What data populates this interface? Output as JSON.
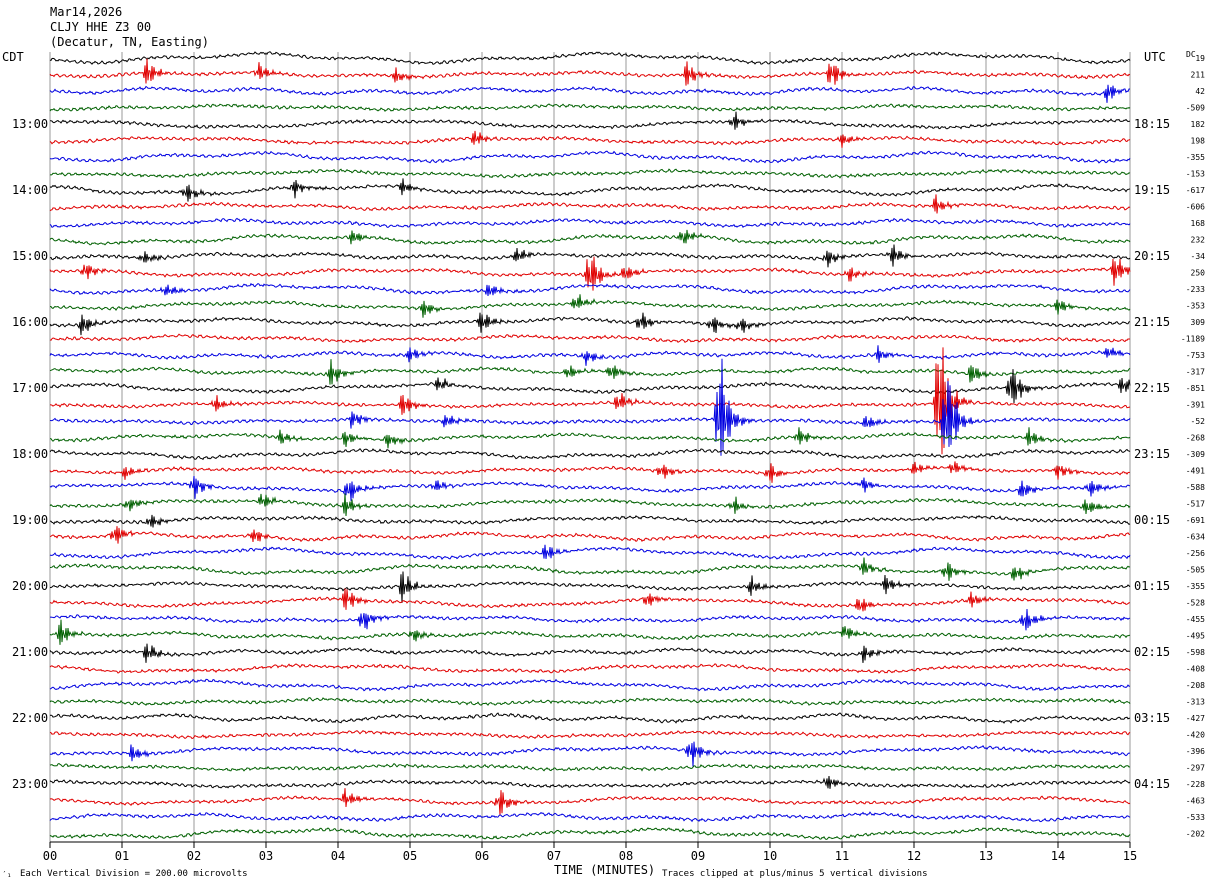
{
  "header": {
    "date": "Mar14,2026",
    "station": "CLJY HHE Z3 00",
    "location": "(Decatur, TN, Easting)"
  },
  "labels": {
    "left_tz": "CDT",
    "right_tz": "UTC",
    "dc_label": "DC",
    "x_axis_title": "TIME (MINUTES)",
    "scale_note": "Each Vertical Division =  200.00 microvolts",
    "clip_note": "Traces clipped at plus/minus 5 vertical divisions",
    "corner_mark": "′₁"
  },
  "chart_data": {
    "type": "line",
    "title": "",
    "xlabel": "TIME (MINUTES)",
    "xlim": [
      0,
      15
    ],
    "x_ticks": [
      "00",
      "01",
      "02",
      "03",
      "04",
      "05",
      "06",
      "07",
      "08",
      "09",
      "10",
      "11",
      "12",
      "13",
      "14",
      "15"
    ],
    "rows_per_hour": 4,
    "row_count": 48,
    "trace_colors": [
      "#000000",
      "#e00000",
      "#0000e0",
      "#006000"
    ],
    "left_hour_labels": [
      "13:00",
      "14:00",
      "15:00",
      "16:00",
      "17:00",
      "18:00",
      "19:00",
      "20:00",
      "21:00",
      "22:00",
      "23:00"
    ],
    "right_hour_labels": [
      "18:15",
      "19:15",
      "20:15",
      "21:15",
      "22:15",
      "23:15",
      "00:15",
      "01:15",
      "02:15",
      "03:15",
      "04:15"
    ],
    "hour_label_first_row": 4,
    "dc_offsets": [
      "19",
      "211",
      "42",
      "-509",
      "182",
      "198",
      "-355",
      "-153",
      "-617",
      "-606",
      "168",
      "232",
      "-34",
      "250",
      "-233",
      "-353",
      "309",
      "-1189",
      "-753",
      "-317",
      "-851",
      "-391",
      "-52",
      "-268",
      "-309",
      "-491",
      "-588",
      "-517",
      "-691",
      "-634",
      "-256",
      "-505",
      "-355",
      "-528",
      "-455",
      "-495",
      "-598",
      "-408",
      "-208",
      "-313",
      "-427",
      "-420",
      "-396",
      "-297",
      "-228",
      "-463",
      "-533",
      "-202"
    ],
    "events": [
      {
        "row": 1,
        "minute": 1.35,
        "amp": 0.8
      },
      {
        "row": 1,
        "minute": 2.9,
        "amp": 0.5
      },
      {
        "row": 1,
        "minute": 4.8,
        "amp": 0.5
      },
      {
        "row": 1,
        "minute": 8.85,
        "amp": 0.7
      },
      {
        "row": 1,
        "minute": 10.85,
        "amp": 0.9
      },
      {
        "row": 2,
        "minute": 14.7,
        "amp": 0.6
      },
      {
        "row": 4,
        "minute": 9.5,
        "amp": 0.6
      },
      {
        "row": 5,
        "minute": 5.9,
        "amp": 0.5
      },
      {
        "row": 5,
        "minute": 11.0,
        "amp": 0.5
      },
      {
        "row": 8,
        "minute": 1.9,
        "amp": 0.6
      },
      {
        "row": 8,
        "minute": 3.4,
        "amp": 0.5
      },
      {
        "row": 8,
        "minute": 4.9,
        "amp": 0.5
      },
      {
        "row": 9,
        "minute": 12.3,
        "amp": 0.6
      },
      {
        "row": 11,
        "minute": 4.2,
        "amp": 0.5
      },
      {
        "row": 11,
        "minute": 8.8,
        "amp": 0.6
      },
      {
        "row": 12,
        "minute": 1.3,
        "amp": 0.5
      },
      {
        "row": 12,
        "minute": 6.5,
        "amp": 0.5
      },
      {
        "row": 12,
        "minute": 10.8,
        "amp": 0.6
      },
      {
        "row": 12,
        "minute": 11.7,
        "amp": 0.7
      },
      {
        "row": 13,
        "minute": 0.5,
        "amp": 0.6
      },
      {
        "row": 13,
        "minute": 7.5,
        "amp": 1.6
      },
      {
        "row": 13,
        "minute": 8.0,
        "amp": 0.6
      },
      {
        "row": 13,
        "minute": 11.1,
        "amp": 0.5
      },
      {
        "row": 13,
        "minute": 14.8,
        "amp": 1.0
      },
      {
        "row": 14,
        "minute": 1.6,
        "amp": 0.5
      },
      {
        "row": 14,
        "minute": 6.1,
        "amp": 0.5
      },
      {
        "row": 15,
        "minute": 5.2,
        "amp": 0.5
      },
      {
        "row": 15,
        "minute": 7.3,
        "amp": 0.6
      },
      {
        "row": 15,
        "minute": 14.0,
        "amp": 0.5
      },
      {
        "row": 16,
        "minute": 0.45,
        "amp": 0.7
      },
      {
        "row": 16,
        "minute": 6.0,
        "amp": 0.8
      },
      {
        "row": 16,
        "minute": 8.2,
        "amp": 0.6
      },
      {
        "row": 16,
        "minute": 9.2,
        "amp": 0.6
      },
      {
        "row": 16,
        "minute": 9.6,
        "amp": 0.5
      },
      {
        "row": 18,
        "minute": 5.0,
        "amp": 0.5
      },
      {
        "row": 18,
        "minute": 7.45,
        "amp": 0.5
      },
      {
        "row": 18,
        "minute": 11.5,
        "amp": 0.5
      },
      {
        "row": 18,
        "minute": 14.7,
        "amp": 0.5
      },
      {
        "row": 19,
        "minute": 3.9,
        "amp": 0.8
      },
      {
        "row": 19,
        "minute": 7.2,
        "amp": 0.5
      },
      {
        "row": 19,
        "minute": 7.8,
        "amp": 0.6
      },
      {
        "row": 19,
        "minute": 12.8,
        "amp": 0.7
      },
      {
        "row": 20,
        "minute": 5.4,
        "amp": 0.5
      },
      {
        "row": 20,
        "minute": 13.35,
        "amp": 1.6
      },
      {
        "row": 20,
        "minute": 14.9,
        "amp": 0.6
      },
      {
        "row": 21,
        "minute": 2.3,
        "amp": 0.5
      },
      {
        "row": 21,
        "minute": 4.9,
        "amp": 0.8
      },
      {
        "row": 21,
        "minute": 7.9,
        "amp": 0.7
      },
      {
        "row": 21,
        "minute": 12.35,
        "amp": 5.0
      },
      {
        "row": 22,
        "minute": 4.2,
        "amp": 0.6
      },
      {
        "row": 22,
        "minute": 5.5,
        "amp": 0.5
      },
      {
        "row": 22,
        "minute": 9.3,
        "amp": 4.0
      },
      {
        "row": 22,
        "minute": 11.35,
        "amp": 0.5
      },
      {
        "row": 22,
        "minute": 12.45,
        "amp": 3.5
      },
      {
        "row": 23,
        "minute": 3.2,
        "amp": 0.5
      },
      {
        "row": 23,
        "minute": 4.1,
        "amp": 0.6
      },
      {
        "row": 23,
        "minute": 4.7,
        "amp": 0.6
      },
      {
        "row": 23,
        "minute": 10.4,
        "amp": 0.6
      },
      {
        "row": 23,
        "minute": 13.6,
        "amp": 0.6
      },
      {
        "row": 25,
        "minute": 1.05,
        "amp": 0.5
      },
      {
        "row": 25,
        "minute": 8.5,
        "amp": 0.5
      },
      {
        "row": 25,
        "minute": 10.0,
        "amp": 0.6
      },
      {
        "row": 25,
        "minute": 12.0,
        "amp": 0.5
      },
      {
        "row": 25,
        "minute": 12.55,
        "amp": 0.5
      },
      {
        "row": 25,
        "minute": 14.0,
        "amp": 0.5
      },
      {
        "row": 26,
        "minute": 2.0,
        "amp": 0.8
      },
      {
        "row": 26,
        "minute": 4.15,
        "amp": 0.8
      },
      {
        "row": 26,
        "minute": 5.35,
        "amp": 0.5
      },
      {
        "row": 26,
        "minute": 11.3,
        "amp": 0.5
      },
      {
        "row": 26,
        "minute": 13.5,
        "amp": 0.6
      },
      {
        "row": 26,
        "minute": 14.45,
        "amp": 0.6
      },
      {
        "row": 27,
        "minute": 1.1,
        "amp": 0.5
      },
      {
        "row": 27,
        "minute": 2.95,
        "amp": 0.5
      },
      {
        "row": 27,
        "minute": 4.1,
        "amp": 0.7
      },
      {
        "row": 27,
        "minute": 9.5,
        "amp": 0.5
      },
      {
        "row": 27,
        "minute": 14.4,
        "amp": 0.6
      },
      {
        "row": 28,
        "minute": 1.4,
        "amp": 0.5
      },
      {
        "row": 29,
        "minute": 0.9,
        "amp": 0.7
      },
      {
        "row": 29,
        "minute": 2.85,
        "amp": 0.5
      },
      {
        "row": 30,
        "minute": 6.9,
        "amp": 0.6
      },
      {
        "row": 31,
        "minute": 11.3,
        "amp": 0.6
      },
      {
        "row": 31,
        "minute": 12.45,
        "amp": 0.7
      },
      {
        "row": 31,
        "minute": 13.4,
        "amp": 0.6
      },
      {
        "row": 32,
        "minute": 4.9,
        "amp": 1.0
      },
      {
        "row": 32,
        "minute": 9.75,
        "amp": 0.6
      },
      {
        "row": 32,
        "minute": 11.6,
        "amp": 0.6
      },
      {
        "row": 33,
        "minute": 4.1,
        "amp": 0.8
      },
      {
        "row": 33,
        "minute": 8.3,
        "amp": 0.5
      },
      {
        "row": 33,
        "minute": 11.25,
        "amp": 0.6
      },
      {
        "row": 33,
        "minute": 12.8,
        "amp": 0.5
      },
      {
        "row": 34,
        "minute": 4.35,
        "amp": 0.8
      },
      {
        "row": 34,
        "minute": 13.55,
        "amp": 0.8
      },
      {
        "row": 35,
        "minute": 0.15,
        "amp": 0.8
      },
      {
        "row": 35,
        "minute": 5.05,
        "amp": 0.5
      },
      {
        "row": 35,
        "minute": 11.05,
        "amp": 0.5
      },
      {
        "row": 36,
        "minute": 1.35,
        "amp": 0.7
      },
      {
        "row": 36,
        "minute": 11.3,
        "amp": 0.6
      },
      {
        "row": 42,
        "minute": 1.15,
        "amp": 0.6
      },
      {
        "row": 42,
        "minute": 8.9,
        "amp": 1.0
      },
      {
        "row": 44,
        "minute": 10.8,
        "amp": 0.5
      },
      {
        "row": 45,
        "minute": 4.1,
        "amp": 0.6
      },
      {
        "row": 45,
        "minute": 6.25,
        "amp": 0.8
      }
    ]
  }
}
